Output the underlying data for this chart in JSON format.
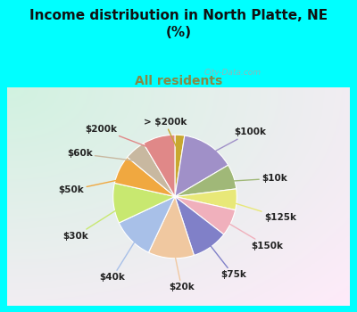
{
  "title": "Income distribution in North Platte, NE\n(%)",
  "subtitle": "All residents",
  "background_color": "#00FFFF",
  "watermark": "City-Data.com",
  "labels": [
    "> $200k",
    "$100k",
    "$10k",
    "$125k",
    "$150k",
    "$75k",
    "$20k",
    "$40k",
    "$30k",
    "$50k",
    "$60k",
    "$200k"
  ],
  "values": [
    2.5,
    14.0,
    6.5,
    5.5,
    7.0,
    9.5,
    12.0,
    11.0,
    10.5,
    7.5,
    5.5,
    8.5
  ],
  "colors": [
    "#c8a830",
    "#a090c8",
    "#a0b878",
    "#e8e878",
    "#f0b0bc",
    "#8080c8",
    "#f0c8a0",
    "#a8c0e8",
    "#c8e870",
    "#f0a840",
    "#c8b8a0",
    "#e08888"
  ],
  "label_fontsize": 7.5,
  "title_fontsize": 11,
  "subtitle_fontsize": 10,
  "subtitle_color": "#888844",
  "title_color": "#111111",
  "label_color": "#222222"
}
